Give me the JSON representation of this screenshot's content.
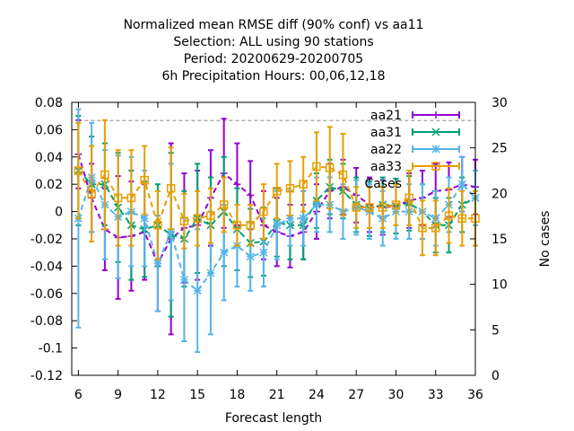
{
  "chart_data": {
    "type": "line",
    "title_lines": [
      "Normalized mean RMSE diff (90% conf) vs aa11",
      "Selection: ALL using    90 stations",
      "Period: 20200629-20200705",
      "6h Precipitation   Hours:  00,06,12,18"
    ],
    "xlabel": "Forecast length",
    "ylabel_right": "No cases",
    "xlim": [
      5.5,
      36
    ],
    "ylim": [
      -0.12,
      0.08
    ],
    "y2lim": [
      0,
      30
    ],
    "xticks": [
      6,
      9,
      12,
      15,
      18,
      21,
      24,
      27,
      30,
      33,
      36
    ],
    "yticks": [
      -0.12,
      -0.1,
      -0.08,
      -0.06,
      -0.04,
      -0.02,
      0,
      0.02,
      0.04,
      0.06,
      0.08
    ],
    "ytick_labels": [
      "-0.12",
      "-0.1",
      "-0.08",
      "-0.06",
      "-0.04",
      "-0.02",
      "0",
      "0.02",
      "0.04",
      "0.06",
      "0.08"
    ],
    "y2ticks": [
      0,
      5,
      10,
      15,
      20,
      25,
      30
    ],
    "grid": false,
    "legend_position": "top-right",
    "x": [
      6,
      7,
      8,
      9,
      10,
      11,
      12,
      13,
      14,
      15,
      16,
      17,
      18,
      19,
      20,
      21,
      22,
      23,
      24,
      25,
      26,
      27,
      28,
      29,
      30,
      31,
      32,
      33,
      34,
      35,
      36
    ],
    "series": [
      {
        "name": "aa21",
        "color": "#9400d3",
        "marker": "plus",
        "values": [
          0.042,
          0.01,
          -0.013,
          -0.019,
          -0.018,
          -0.015,
          -0.038,
          -0.02,
          -0.012,
          -0.01,
          0.01,
          0.028,
          0.02,
          0.012,
          -0.01,
          -0.015,
          -0.018,
          -0.015,
          0.0,
          0.015,
          0.018,
          0.012,
          0.005,
          0.003,
          0.004,
          0.008,
          0.01,
          0.015,
          0.016,
          0.02,
          0.018
        ],
        "err": [
          0.025,
          0.025,
          0.03,
          0.045,
          0.04,
          0.035,
          0.035,
          0.07,
          0.04,
          0.04,
          0.035,
          0.04,
          0.03,
          0.025,
          0.025,
          0.025,
          0.023,
          0.02,
          0.02,
          0.02,
          0.02,
          0.02,
          0.02,
          0.02,
          0.02,
          0.02,
          0.02,
          0.02,
          0.02,
          0.02,
          0.02
        ]
      },
      {
        "name": "aa31",
        "color": "#009e73",
        "marker": "cross",
        "values": [
          0.03,
          0.02,
          0.02,
          0.003,
          -0.01,
          -0.013,
          -0.01,
          -0.017,
          -0.02,
          -0.005,
          -0.01,
          0.0,
          -0.013,
          -0.023,
          -0.022,
          -0.008,
          -0.01,
          -0.01,
          0.008,
          0.018,
          0.015,
          0.005,
          0.002,
          0.005,
          0.004,
          0.006,
          0.0,
          -0.01,
          -0.01,
          0.005,
          0.01
        ],
        "err": [
          0.04,
          0.035,
          0.03,
          0.04,
          0.04,
          0.035,
          0.03,
          0.06,
          0.035,
          0.04,
          0.035,
          0.04,
          0.03,
          0.025,
          0.025,
          0.025,
          0.025,
          0.025,
          0.02,
          0.02,
          0.02,
          0.02,
          0.02,
          0.02,
          0.02,
          0.02,
          0.02,
          0.02,
          0.02,
          0.02,
          0.02
        ]
      },
      {
        "name": "aa22",
        "color": "#56b4e9",
        "marker": "star",
        "values": [
          -0.005,
          0.025,
          0.005,
          -0.004,
          0.0,
          -0.005,
          -0.038,
          -0.015,
          -0.05,
          -0.058,
          -0.045,
          -0.03,
          -0.025,
          -0.033,
          -0.03,
          -0.01,
          -0.005,
          -0.005,
          0.005,
          0.005,
          0.0,
          0.003,
          0.0,
          -0.005,
          0.0,
          0.0,
          0.0,
          -0.005,
          0.005,
          0.02,
          0.01
        ],
        "err": [
          0.08,
          0.04,
          0.04,
          0.045,
          0.04,
          0.035,
          0.035,
          0.05,
          0.045,
          0.045,
          0.045,
          0.035,
          0.03,
          0.025,
          0.025,
          0.025,
          0.02,
          0.02,
          0.02,
          0.02,
          0.02,
          0.02,
          0.02,
          0.02,
          0.02,
          0.02,
          0.02,
          0.02,
          0.02,
          0.02,
          0.02
        ]
      },
      {
        "name": "aa33",
        "color": "#e69f00",
        "marker": "square",
        "values": [
          0.03,
          0.013,
          0.027,
          0.01,
          0.01,
          0.023,
          -0.01,
          0.017,
          -0.007,
          -0.005,
          -0.003,
          0.005,
          -0.01,
          -0.01,
          0.0,
          0.015,
          0.017,
          0.02,
          0.033,
          0.032,
          0.027,
          0.003,
          0.003,
          0.003,
          0.005,
          0.01,
          -0.012,
          -0.012,
          -0.003,
          -0.005,
          -0.005
        ],
        "err": [
          0.035,
          0.035,
          0.04,
          0.035,
          0.035,
          0.025,
          0.025,
          0.03,
          0.02,
          0.02,
          0.02,
          0.02,
          0.015,
          0.015,
          0.02,
          0.02,
          0.02,
          0.02,
          0.025,
          0.03,
          0.03,
          0.015,
          0.015,
          0.015,
          0.015,
          0.02,
          0.02,
          0.02,
          0.02,
          0.02,
          0.02
        ]
      },
      {
        "name": "Cases",
        "color": "#a0a0a0",
        "axis": "y2",
        "dashed": true,
        "values": [
          28,
          28,
          28,
          28,
          28,
          28,
          28,
          28,
          28,
          28,
          28,
          28,
          28,
          28,
          28,
          28,
          28,
          28,
          28,
          28,
          28,
          28,
          28,
          28,
          28,
          28,
          28,
          28,
          28,
          28,
          28
        ]
      }
    ]
  }
}
